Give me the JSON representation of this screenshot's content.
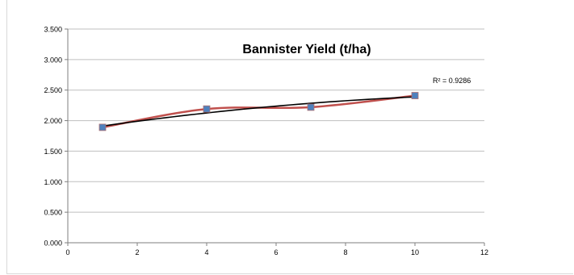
{
  "chart_data": {
    "type": "scatter",
    "title": "Bannister Yield (t/ha)",
    "xlabel": "",
    "ylabel": "",
    "xlim": [
      0,
      12
    ],
    "ylim": [
      0,
      3.5
    ],
    "x_ticks": [
      "0",
      "2",
      "4",
      "6",
      "8",
      "10",
      "12"
    ],
    "y_ticks": [
      "0.000",
      "0.500",
      "1.000",
      "1.500",
      "2.000",
      "2.500",
      "3.000",
      "3.500"
    ],
    "grid": "horizontal",
    "series": [
      {
        "x": [
          1,
          4,
          7,
          10
        ],
        "values": [
          1.89,
          2.19,
          2.22,
          2.41
        ],
        "marker": "square",
        "marker_color": "#4f81bd",
        "line": "smooth",
        "line_color": "#c0504d"
      }
    ],
    "trendline": {
      "type": "polynomial",
      "color": "#000000",
      "annotation": "R² = 0.9286"
    }
  }
}
